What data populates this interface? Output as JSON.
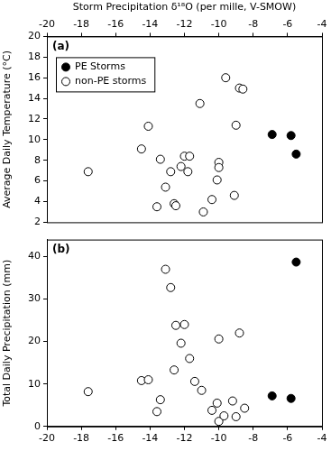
{
  "chart_data": [
    {
      "type": "scatter",
      "x_label": "Storm Precipitation δ¹⁸O (per mille, V-SMOW)",
      "y_label": "Average Daily Temperature (°C)",
      "annotations": [
        "(a)"
      ],
      "xlim": [
        -20,
        -4
      ],
      "xticks": [
        -20,
        -18,
        -16,
        -14,
        -12,
        -10,
        -8,
        -6,
        -4
      ],
      "ylim": [
        2,
        20
      ],
      "yticks": [
        2,
        4,
        6,
        8,
        10,
        12,
        14,
        16,
        18,
        20
      ],
      "grid": false,
      "legend": "upper left",
      "series": [
        {
          "name": "PE Storms",
          "color": "#000000",
          "marker": "circle",
          "x": [
            -6.9,
            -5.8,
            -5.5
          ],
          "values": [
            10.5,
            10.4,
            8.6
          ]
        },
        {
          "name": "non-PE storms",
          "color": "#000000",
          "marker": "open_circle",
          "x": [
            -17.6,
            -14.5,
            -14.1,
            -13.4,
            -13.6,
            -13.1,
            -12.8,
            -12.6,
            -12.5,
            -12.2,
            -12.0,
            -11.7,
            -11.8,
            -11.1,
            -10.9,
            -10.4,
            -10.0,
            -10.0,
            -10.1,
            -9.6,
            -9.1,
            -9.0,
            -8.8,
            -8.6
          ],
          "values": [
            6.9,
            9.1,
            11.3,
            8.1,
            3.5,
            5.4,
            6.9,
            3.8,
            3.6,
            7.4,
            8.4,
            8.4,
            6.9,
            13.5,
            3.0,
            4.2,
            7.8,
            7.3,
            6.1,
            16.0,
            4.6,
            11.4,
            15.0,
            14.9
          ]
        }
      ]
    },
    {
      "type": "scatter",
      "y_label": "Total Daily Precipitation (mm)",
      "annotations": [
        "(b)"
      ],
      "xlim": [
        -20,
        -4
      ],
      "xticks": [
        -20,
        -18,
        -16,
        -14,
        -12,
        -10,
        -8,
        -6,
        -4
      ],
      "ylim": [
        0,
        44
      ],
      "yticks": [
        0,
        10,
        20,
        30,
        40
      ],
      "grid": false,
      "series": [
        {
          "name": "PE Storms",
          "color": "#000000",
          "marker": "circle",
          "x": [
            -6.9,
            -5.8,
            -5.5
          ],
          "values": [
            7.2,
            6.6,
            38.7
          ]
        },
        {
          "name": "non-PE storms",
          "color": "#000000",
          "marker": "open_circle",
          "x": [
            -17.6,
            -14.5,
            -14.1,
            -13.4,
            -13.6,
            -13.1,
            -12.8,
            -12.6,
            -12.5,
            -12.2,
            -12.0,
            -11.7,
            -11.4,
            -11.0,
            -10.4,
            -10.0,
            -10.1,
            -10.0,
            -9.7,
            -9.2,
            -9.0,
            -8.8,
            -8.5
          ],
          "values": [
            8.2,
            10.8,
            11.0,
            6.3,
            3.5,
            37.0,
            32.7,
            13.3,
            23.8,
            19.6,
            24.0,
            16.0,
            10.6,
            8.5,
            3.8,
            20.6,
            5.5,
            1.2,
            2.5,
            6.0,
            2.3,
            22.0,
            4.3
          ]
        }
      ]
    }
  ]
}
